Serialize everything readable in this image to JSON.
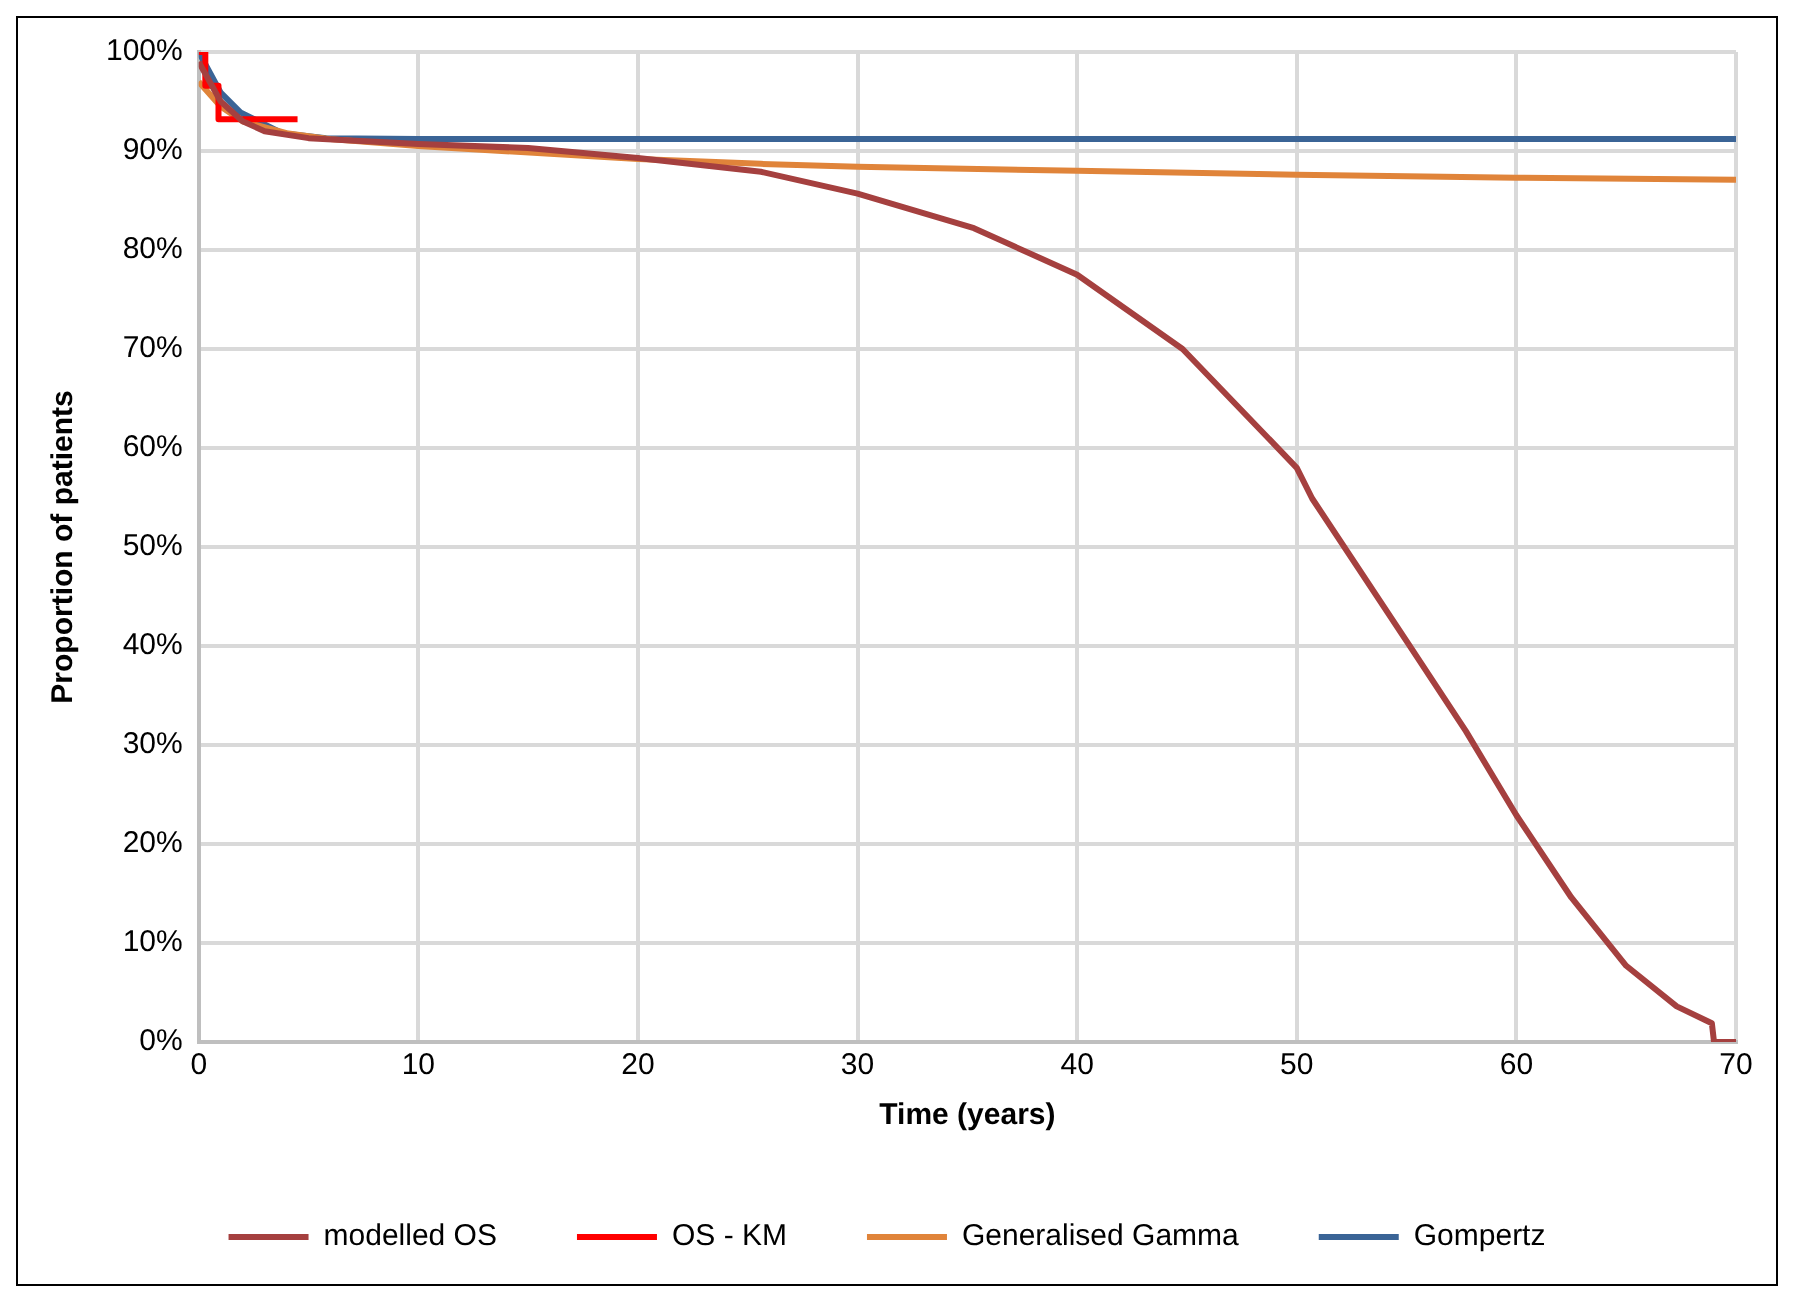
{
  "chart_data": {
    "type": "line",
    "xlabel": "Time (years)",
    "ylabel": "Proportion of patients",
    "xlim": [
      0,
      70
    ],
    "xticks": [
      0,
      10,
      20,
      30,
      40,
      50,
      60,
      70
    ],
    "ylim": [
      0,
      100
    ],
    "yticks": [
      {
        "value": 0,
        "label": "0%"
      },
      {
        "value": 10,
        "label": "10%"
      },
      {
        "value": 20,
        "label": "20%"
      },
      {
        "value": 30,
        "label": "30%"
      },
      {
        "value": 40,
        "label": "40%"
      },
      {
        "value": 50,
        "label": "50%"
      },
      {
        "value": 60,
        "label": "60%"
      },
      {
        "value": 70,
        "label": "70%"
      },
      {
        "value": 80,
        "label": "80%"
      },
      {
        "value": 90,
        "label": "90%"
      },
      {
        "value": 100,
        "label": "100%"
      }
    ],
    "grid": true,
    "legend": "bottom",
    "marker": "none",
    "line_style": "solid",
    "series": [
      {
        "name": "modelled OS",
        "color": "#a5403f",
        "x": [
          0,
          1,
          2,
          3,
          5,
          10,
          15,
          20,
          25.6,
          30,
          35.3,
          40,
          44.8,
          50,
          50.7,
          55,
          57.7,
          60,
          62.5,
          65,
          67.3,
          68.9,
          69,
          70
        ],
        "values": [
          99,
          95,
          93,
          92,
          91.3,
          90.7,
          90.3,
          89.3,
          87.9,
          85.7,
          82.2,
          77.5,
          70,
          58,
          54.9,
          40.5,
          31.4,
          22.9,
          14.6,
          7.7,
          3.6,
          1.9,
          0,
          0
        ]
      },
      {
        "name": "OS - KM",
        "type": "step",
        "color": "#ff0000",
        "x": [
          0,
          0.3,
          0.9,
          4.5
        ],
        "values": [
          100,
          96.6,
          93.2,
          93.2
        ]
      },
      {
        "name": "Generalised Gamma",
        "color": "#e0843a",
        "x": [
          0,
          1,
          2,
          4,
          6,
          10,
          20,
          25.6,
          30,
          40,
          50,
          60,
          70
        ],
        "values": [
          97,
          94.5,
          93,
          91.8,
          91.2,
          90.5,
          89.2,
          88.7,
          88.4,
          88,
          87.6,
          87.3,
          87.1
        ]
      },
      {
        "name": "Gompertz",
        "color": "#3a6496",
        "x": [
          0,
          1,
          1.9,
          3.8,
          5.8,
          10,
          70
        ],
        "values": [
          100,
          95.9,
          93.9,
          91.8,
          91.3,
          91.2,
          91.2
        ]
      }
    ]
  }
}
